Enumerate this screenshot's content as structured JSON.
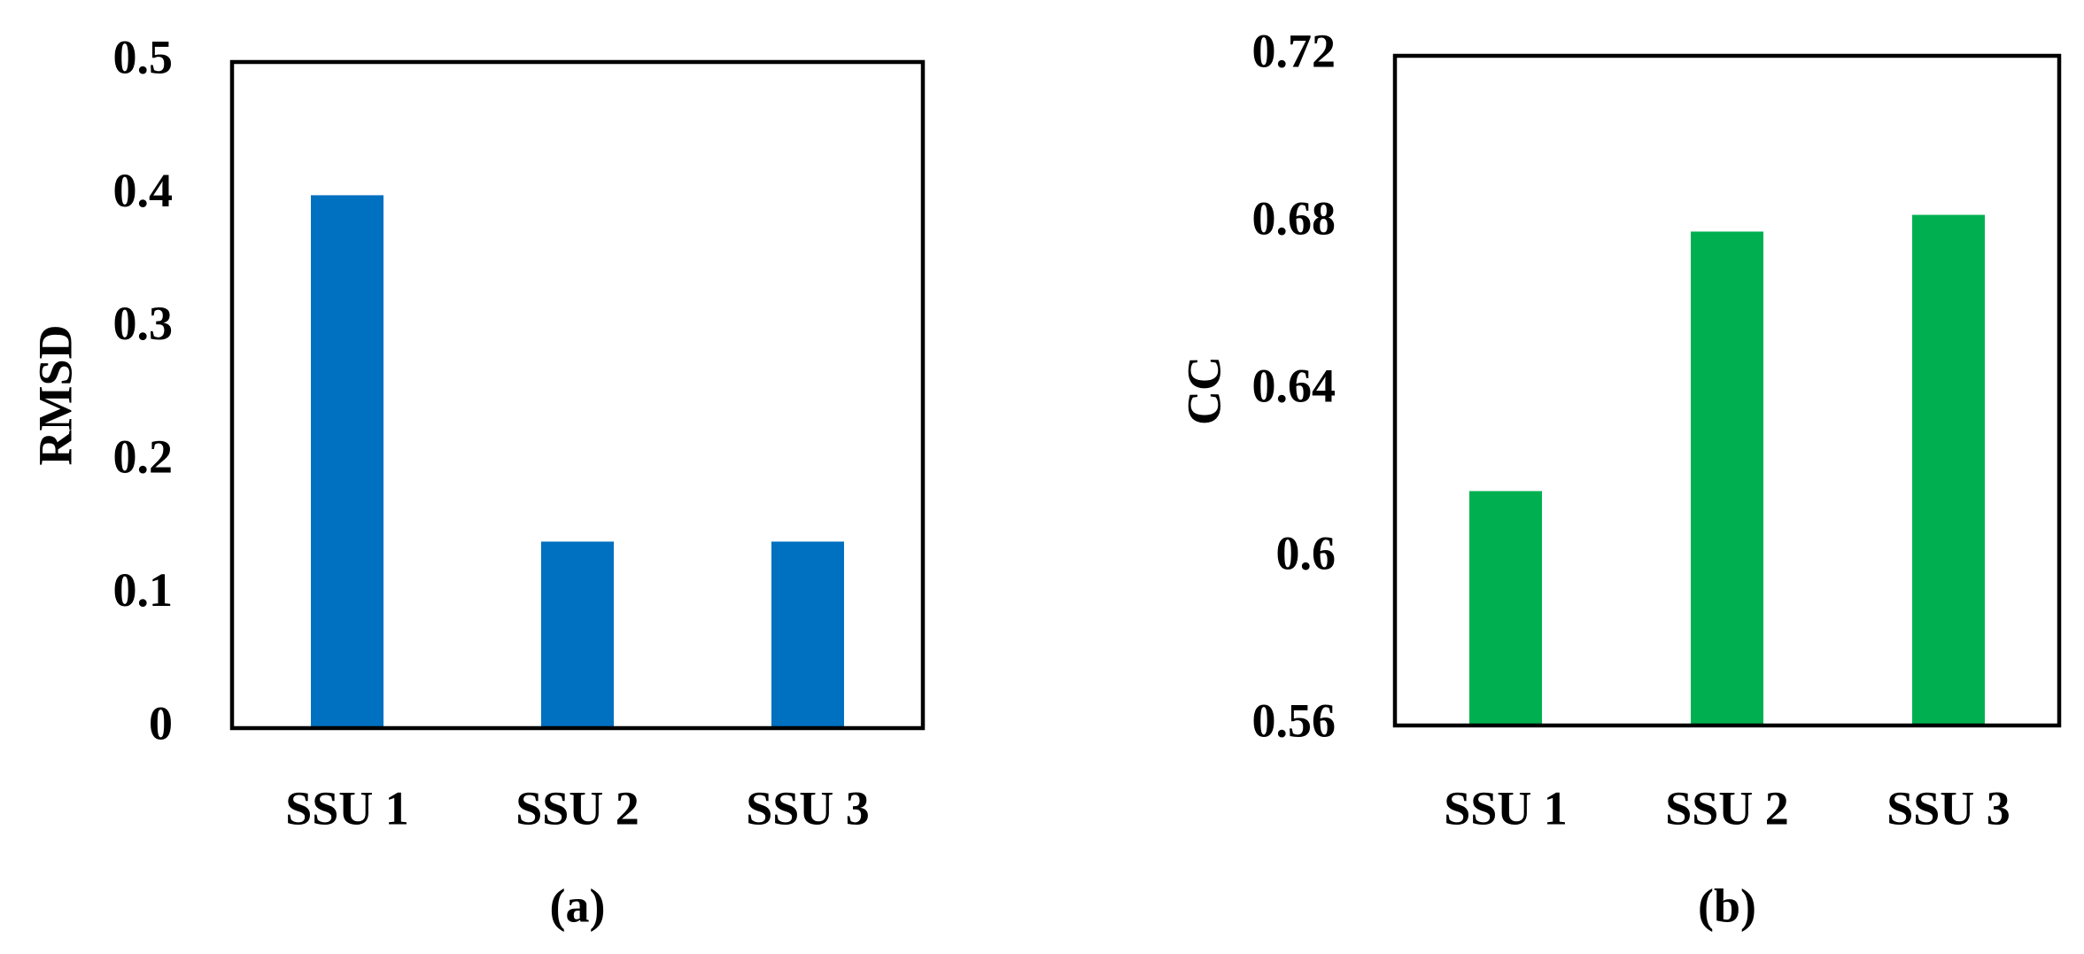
{
  "chart_data": [
    {
      "type": "bar",
      "ylabel": "RMSD",
      "panel_label": "(a)",
      "categories": [
        "SSU 1",
        "SSU 2",
        "SSU 3"
      ],
      "values": [
        0.4,
        0.14,
        0.14
      ],
      "color": "#0070c0",
      "ylim": [
        0,
        0.5
      ],
      "yticks": [
        0,
        0.1,
        0.2,
        0.3,
        0.4,
        0.5
      ]
    },
    {
      "type": "bar",
      "ylabel": "CC",
      "panel_label": "(b)",
      "categories": [
        "SSU 1",
        "SSU 2",
        "SSU 3"
      ],
      "values": [
        0.616,
        0.678,
        0.682
      ],
      "color": "#00b050",
      "ylim": [
        0.56,
        0.72
      ],
      "yticks": [
        0.56,
        0.6,
        0.64,
        0.68,
        0.72
      ]
    }
  ]
}
